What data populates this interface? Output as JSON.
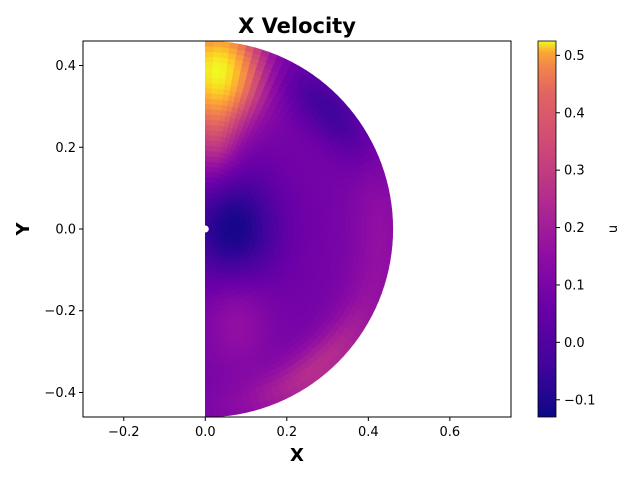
{
  "chart_data": {
    "type": "heatmap",
    "title": "X Velocity",
    "xlabel": "X",
    "ylabel": "Y",
    "xlim": [
      -0.3,
      0.75
    ],
    "ylim": [
      -0.46,
      0.46
    ],
    "x_ticks": [
      -0.2,
      0.0,
      0.2,
      0.4,
      0.6
    ],
    "x_tick_labels": [
      "−0.2",
      "0.0",
      "0.2",
      "0.4",
      "0.6"
    ],
    "y_ticks": [
      -0.4,
      -0.2,
      0.0,
      0.2,
      0.4
    ],
    "y_tick_labels": [
      "−0.4",
      "−0.2",
      "0.0",
      "0.2",
      "0.4"
    ],
    "domain": {
      "shape": "half-disk",
      "x_min": 0.0,
      "radius": 0.46
    },
    "colorbar": {
      "label": "u",
      "colormap": "plasma",
      "range": [
        -0.13,
        0.525
      ],
      "ticks": [
        -0.1,
        0.0,
        0.1,
        0.2,
        0.3,
        0.4,
        0.5
      ],
      "tick_labels": [
        "−0.1",
        "0.0",
        "0.1",
        "0.2",
        "0.3",
        "0.4",
        "0.5"
      ]
    },
    "field_features": [
      {
        "feature": "maximum",
        "x": 0.03,
        "y": 0.39,
        "u": 0.52
      },
      {
        "feature": "minimum",
        "x": 0.07,
        "y": 0.0,
        "u": -0.12
      },
      {
        "feature": "rim band",
        "x": 0.36,
        "y": -0.28,
        "u": 0.18
      }
    ],
    "grid": false
  }
}
